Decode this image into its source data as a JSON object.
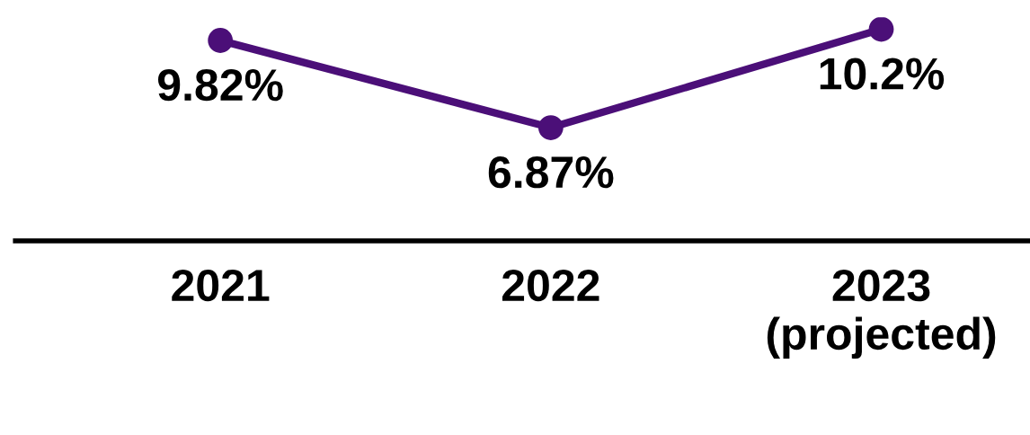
{
  "chart_data": {
    "type": "line",
    "categories": [
      "2021",
      "2022",
      "2023\n(projected)"
    ],
    "series": [
      {
        "color": "#4b0f78",
        "values": [
          9.82,
          6.87,
          10.2
        ],
        "value_labels": [
          "9.82%",
          "6.87%",
          "10.2%"
        ]
      }
    ],
    "marker": "circle",
    "line_style": "solid",
    "grid": false,
    "legend": false
  }
}
